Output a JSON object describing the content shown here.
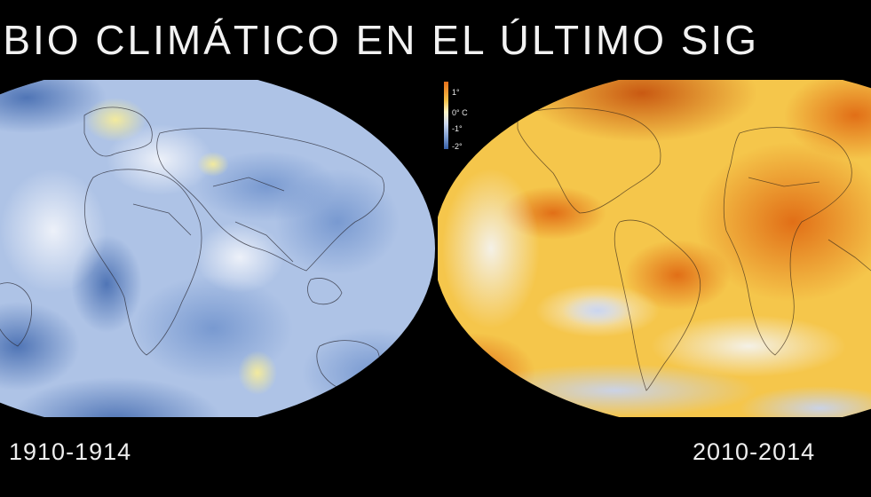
{
  "title": "MBIO CLIMÁTICO EN EL ÚLTIMO SIG",
  "legend": {
    "ticks": [
      "1°",
      "0° C",
      "-1°",
      "-2°"
    ]
  },
  "maps": {
    "left": {
      "period": "1910-1914"
    },
    "right": {
      "period": "2010-2014"
    }
  },
  "colors": {
    "background": "#000000",
    "cold": "#355fa8",
    "neutral": "#fff6c8",
    "warm": "#e8701a"
  }
}
